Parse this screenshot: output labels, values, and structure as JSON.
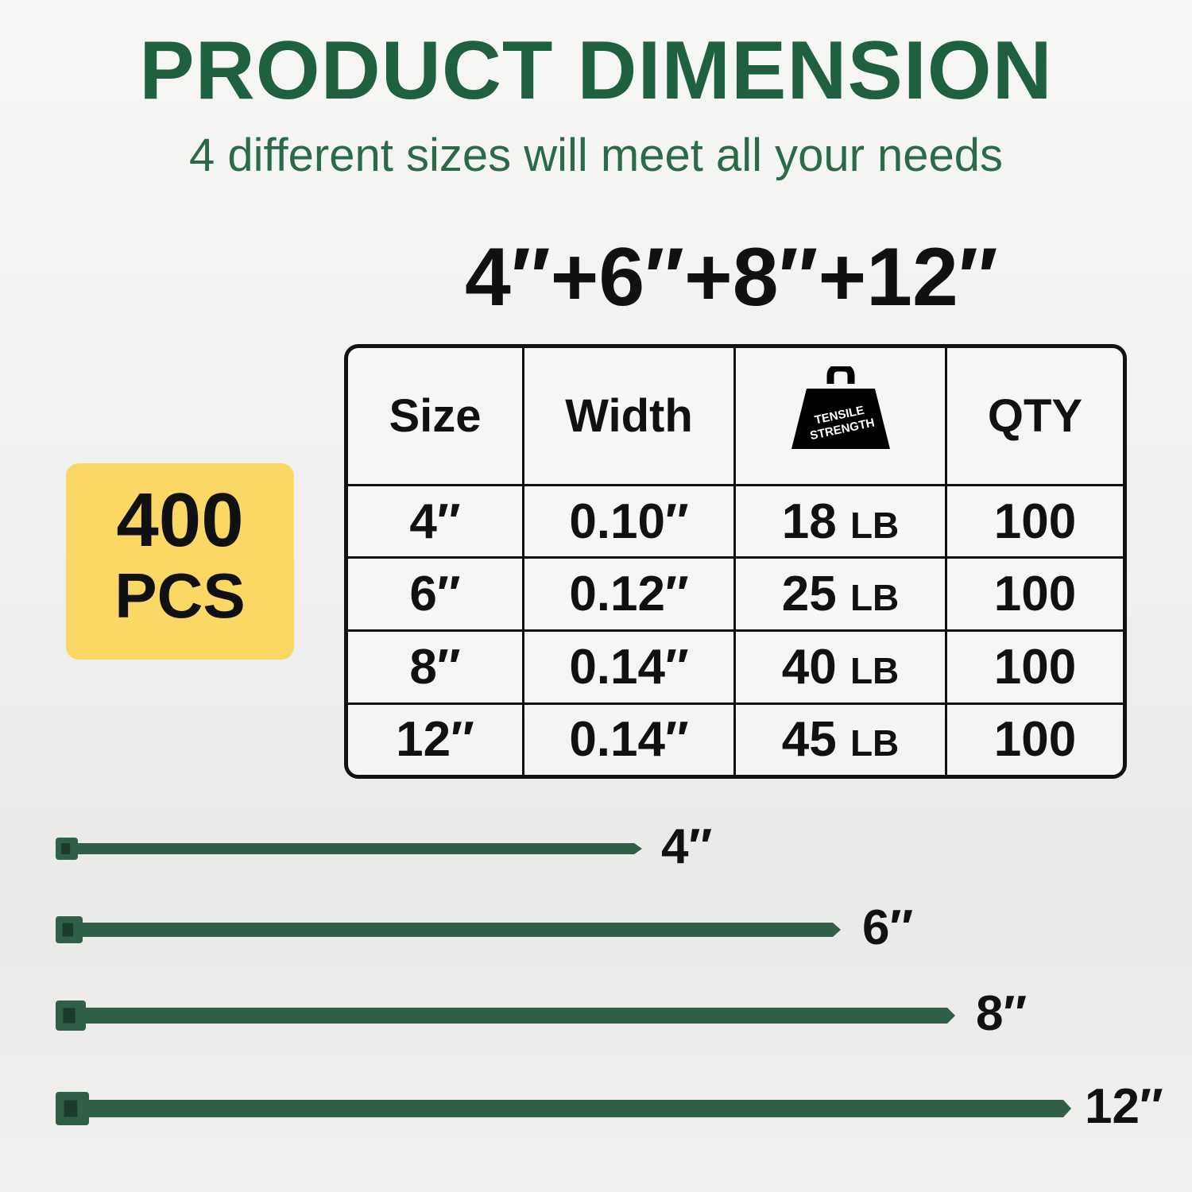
{
  "title": "PRODUCT DIMENSION",
  "subtitle": "4 different sizes will meet all your needs",
  "sizes_headline": "4″+6″+8″+12″",
  "badge": {
    "count": "400",
    "unit": "PCS",
    "color": "#fbd865"
  },
  "table": {
    "headers": {
      "size": "Size",
      "width": "Width",
      "strength_icon": "weight-icon",
      "strength_text": "TENSILE STRENGTH",
      "qty": "QTY"
    },
    "rows": [
      {
        "size": "4″",
        "width": "0.10″",
        "strength": "18",
        "unit": "LB",
        "qty": "100"
      },
      {
        "size": "6″",
        "width": "0.12″",
        "strength": "25",
        "unit": "LB",
        "qty": "100"
      },
      {
        "size": "8″",
        "width": "0.14″",
        "strength": "40",
        "unit": "LB",
        "qty": "100"
      },
      {
        "size": "12″",
        "width": "0.14″",
        "strength": "45",
        "unit": "LB",
        "qty": "100"
      }
    ]
  },
  "ties": [
    {
      "label": "4″"
    },
    {
      "label": "6″"
    },
    {
      "label": "8″"
    },
    {
      "label": "12″"
    }
  ],
  "colors": {
    "title": "#1f6040",
    "tie": "#2f5f47"
  }
}
